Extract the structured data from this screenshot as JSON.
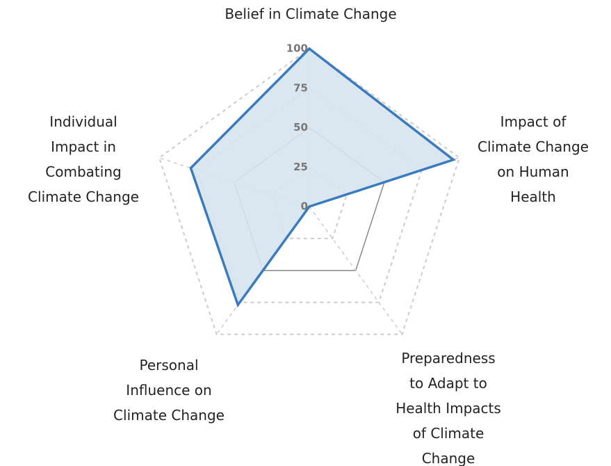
{
  "chart_data": {
    "type": "radar",
    "categories": [
      "Belief in Climate Change",
      "Impact of\nClimate Change\non Human\nHealth",
      "Preparedness\nto Adapt to\nHealth Impacts\nof Climate\nChange",
      "Personal\nInfluence on\nClimate Change",
      "Individual\nImpact in\nCombating\nClimate Change"
    ],
    "values": [
      100,
      96,
      0,
      77,
      79
    ],
    "color": "#3a7bbf",
    "fill": "#d6e4f0",
    "rlim": [
      0,
      100
    ],
    "rticks": [
      0,
      25,
      50,
      75,
      100
    ]
  }
}
